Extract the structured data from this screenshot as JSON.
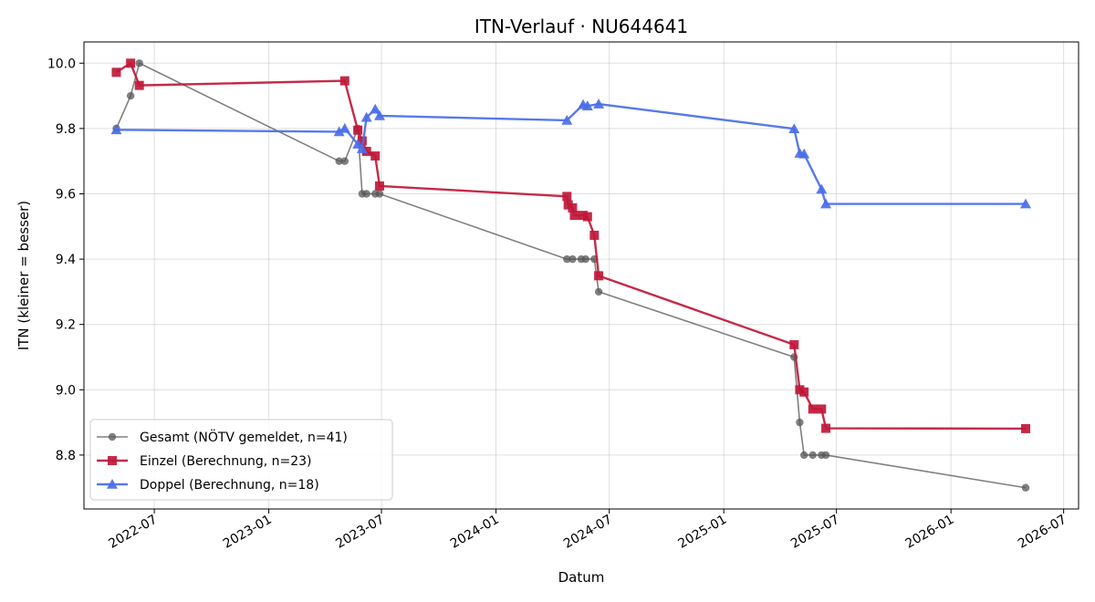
{
  "chart_data": {
    "type": "line",
    "title": "ITN-Verlauf · NU644641",
    "xlabel": "Datum",
    "ylabel": "ITN  (kleiner = besser)",
    "x_ticks": [
      "2022-07",
      "2023-01",
      "2023-07",
      "2024-01",
      "2024-07",
      "2025-01",
      "2025-07",
      "2026-01",
      "2026-07"
    ],
    "y_ticks": [
      "8.8",
      "9.0",
      "9.2",
      "9.4",
      "9.6",
      "9.8",
      "10.0"
    ],
    "xlim": [
      "2022-03-10",
      "2026-07-25"
    ],
    "ylim": [
      8.635,
      10.065
    ],
    "grid": true,
    "legend_position": "bottom-left",
    "series": [
      {
        "name": "Gesamt (NÖTV gemeldet, n=41)",
        "color": "#555555",
        "marker": "circle",
        "points": [
          [
            "2022-05-01",
            9.8
          ],
          [
            "2022-05-24",
            9.9
          ],
          [
            "2022-06-07",
            10.0
          ],
          [
            "2023-04-24",
            9.7
          ],
          [
            "2023-05-03",
            9.7
          ],
          [
            "2023-05-24",
            9.8
          ],
          [
            "2023-05-31",
            9.6
          ],
          [
            "2023-06-07",
            9.6
          ],
          [
            "2023-06-21",
            9.6
          ],
          [
            "2023-06-28",
            9.6
          ],
          [
            "2024-04-24",
            9.4
          ],
          [
            "2024-05-03",
            9.4
          ],
          [
            "2024-05-17",
            9.4
          ],
          [
            "2024-05-24",
            9.4
          ],
          [
            "2024-06-07",
            9.4
          ],
          [
            "2024-06-14",
            9.3
          ],
          [
            "2025-04-24",
            9.1
          ],
          [
            "2025-05-03",
            8.9
          ],
          [
            "2025-05-10",
            8.8
          ],
          [
            "2025-05-24",
            8.8
          ],
          [
            "2025-06-07",
            8.8
          ],
          [
            "2025-06-14",
            8.8
          ],
          [
            "2026-05-01",
            8.7
          ]
        ]
      },
      {
        "name": "Einzel (Berechnung, n=23)",
        "color": "#c0183a",
        "marker": "square",
        "points": [
          [
            "2022-05-01",
            9.972
          ],
          [
            "2022-05-24",
            10.0
          ],
          [
            "2022-06-07",
            9.932
          ],
          [
            "2023-05-03",
            9.946
          ],
          [
            "2023-05-24",
            9.795
          ],
          [
            "2023-05-31",
            9.762
          ],
          [
            "2023-06-07",
            9.73
          ],
          [
            "2023-06-21",
            9.716
          ],
          [
            "2023-06-28",
            9.624
          ],
          [
            "2024-04-24",
            9.592
          ],
          [
            "2024-04-26",
            9.566
          ],
          [
            "2024-05-03",
            9.557
          ],
          [
            "2024-05-06",
            9.534
          ],
          [
            "2024-05-20",
            9.534
          ],
          [
            "2024-05-27",
            9.53
          ],
          [
            "2024-06-07",
            9.473
          ],
          [
            "2024-06-14",
            9.349
          ],
          [
            "2025-04-24",
            9.138
          ],
          [
            "2025-05-03",
            9.0
          ],
          [
            "2025-05-10",
            8.993
          ],
          [
            "2025-05-24",
            8.941
          ],
          [
            "2025-06-07",
            8.941
          ],
          [
            "2025-06-14",
            8.882
          ],
          [
            "2026-05-01",
            8.881
          ]
        ]
      },
      {
        "name": "Doppel (Berechnung, n=18)",
        "color": "#4a6ee8",
        "marker": "triangle",
        "points": [
          [
            "2022-05-01",
            9.796
          ],
          [
            "2023-04-24",
            9.79
          ],
          [
            "2023-05-03",
            9.8
          ],
          [
            "2023-05-24",
            9.752
          ],
          [
            "2023-05-31",
            9.738
          ],
          [
            "2023-06-07",
            9.834
          ],
          [
            "2023-06-21",
            9.859
          ],
          [
            "2023-06-28",
            9.839
          ],
          [
            "2024-04-24",
            9.825
          ],
          [
            "2024-05-20",
            9.873
          ],
          [
            "2024-05-27",
            9.869
          ],
          [
            "2024-06-14",
            9.875
          ],
          [
            "2025-04-24",
            9.799
          ],
          [
            "2025-05-03",
            9.724
          ],
          [
            "2025-05-10",
            9.722
          ],
          [
            "2025-06-07",
            9.614
          ],
          [
            "2025-06-14",
            9.569
          ],
          [
            "2026-05-01",
            9.569
          ]
        ]
      }
    ]
  }
}
